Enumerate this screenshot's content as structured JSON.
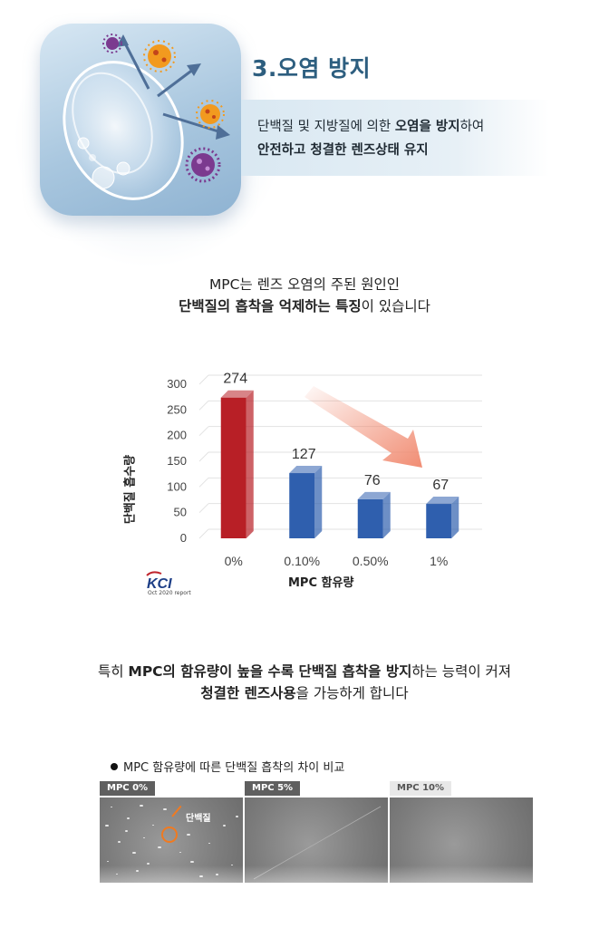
{
  "section": {
    "title": "3.오염 방지",
    "band_line1": {
      "a": "단백질 및 지방질에 의한 ",
      "b": "오염을 방지",
      "c": "하여"
    },
    "band_line2": {
      "b": "안전하고 청결한 렌즈상태 유지"
    }
  },
  "intro": {
    "line1": "MPC는 렌즈 오염의 주된 원인인",
    "line2": {
      "b": "단백질의 흡착을 억제하는 특징",
      "c": "이 있습니다"
    }
  },
  "chart_data": {
    "type": "bar",
    "categories": [
      "0%",
      "0.10%",
      "0.50%",
      "1%"
    ],
    "values": [
      274,
      127,
      76,
      67
    ],
    "colors": [
      "#b81f26",
      "#2f5fae",
      "#2f5fae",
      "#2f5fae"
    ],
    "ylabel": "단백질 흡수량",
    "xlabel": "MPC 함유량",
    "ylim": [
      0,
      300
    ],
    "yticks": [
      0,
      50,
      100,
      150,
      200,
      250,
      300
    ],
    "grid": true,
    "trend_arrow_color": "#f0866b"
  },
  "source": {
    "logo": "KCI",
    "sub": "Oct 2020 report"
  },
  "note": {
    "line1": {
      "a": "특히 ",
      "b1": "MPC의 함유량이 높을 수록 단백질 흡착을 방지",
      "c": "하는 능력이 커져"
    },
    "line2": {
      "b": "청결한 렌즈사용",
      "c": "을 가능하게 합니다"
    }
  },
  "comparison": {
    "title": "MPC 함유량에 따른 단백질 흡착의 차이 비교",
    "panels": [
      {
        "tag": "MPC 0%",
        "label": "단백질"
      },
      {
        "tag": "MPC 5%"
      },
      {
        "tag": "MPC 10%"
      }
    ]
  }
}
